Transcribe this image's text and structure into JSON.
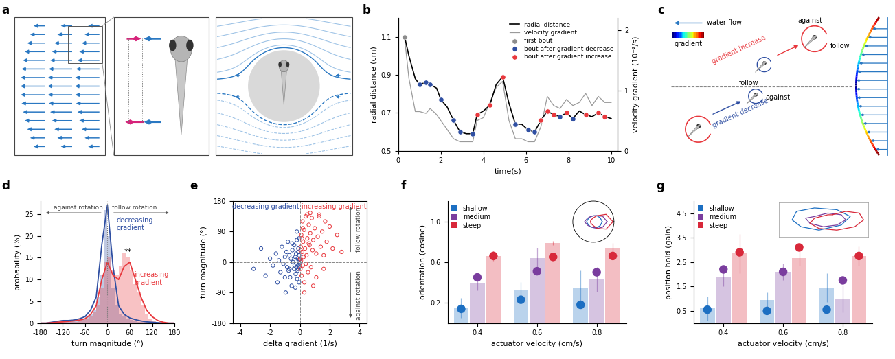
{
  "panel_labels": [
    "a",
    "b",
    "c",
    "d",
    "e",
    "f",
    "g"
  ],
  "diagram_c": {
    "water_flow": "water flow",
    "gradient": "gradient",
    "upper": {
      "arrow": "gradient increase",
      "against": "against",
      "follow": "follow"
    },
    "lower": {
      "arrow": "gradient decrease",
      "follow": "follow",
      "against": "against"
    }
  },
  "chart_data": [
    {
      "panel": "b",
      "type": "line",
      "xlabel": "time(s)",
      "ylabel": "radial distance (cm)",
      "y2label": "velocity gradient (10⁻²/s)",
      "xlim": [
        0,
        10.3
      ],
      "xticks": [
        0,
        2,
        4,
        6,
        8,
        10
      ],
      "ylim": [
        0.5,
        1.2
      ],
      "yticks": [
        0.5,
        0.7,
        0.9,
        1.1
      ],
      "y2lim": [
        0,
        2.2
      ],
      "y2ticks": [
        0,
        1,
        2
      ],
      "legend": "upper right",
      "series": [
        {
          "name": "radial distance",
          "type": "line",
          "color": "#000000",
          "x": [
            0.3,
            0.5,
            0.8,
            1.0,
            1.3,
            1.5,
            1.8,
            2.0,
            2.3,
            2.6,
            2.9,
            3.2,
            3.5,
            3.7,
            4.0,
            4.3,
            4.6,
            4.9,
            5.2,
            5.5,
            5.8,
            6.1,
            6.4,
            6.7,
            7.0,
            7.3,
            7.6,
            7.9,
            8.2,
            8.5,
            8.8,
            9.1,
            9.4,
            9.7,
            10.0
          ],
          "values": [
            1.1,
            1.0,
            0.88,
            0.85,
            0.86,
            0.85,
            0.83,
            0.77,
            0.73,
            0.66,
            0.6,
            0.59,
            0.59,
            0.69,
            0.71,
            0.74,
            0.85,
            0.89,
            0.75,
            0.64,
            0.64,
            0.61,
            0.6,
            0.66,
            0.71,
            0.69,
            0.68,
            0.7,
            0.67,
            0.71,
            0.69,
            0.68,
            0.7,
            0.68,
            0.67
          ]
        },
        {
          "name": "velocity gradient",
          "type": "line",
          "color": "#9a9a9a",
          "axis": "y2",
          "x": [
            0.3,
            0.5,
            0.8,
            1.0,
            1.3,
            1.5,
            1.8,
            2.0,
            2.3,
            2.6,
            2.9,
            3.2,
            3.5,
            3.7,
            4.0,
            4.3,
            4.6,
            4.9,
            5.2,
            5.5,
            5.8,
            6.1,
            6.4,
            6.7,
            7.0,
            7.3,
            7.6,
            7.9,
            8.2,
            8.5,
            8.8,
            9.1,
            9.4,
            9.7,
            10.0
          ],
          "values": [
            1.85,
            1.2,
            0.65,
            0.65,
            0.62,
            0.7,
            0.6,
            0.5,
            0.35,
            0.2,
            0.15,
            0.15,
            0.15,
            0.5,
            0.55,
            0.8,
            1.05,
            1.15,
            0.5,
            0.2,
            0.2,
            0.15,
            0.15,
            0.4,
            0.9,
            0.75,
            0.7,
            0.85,
            0.75,
            0.8,
            0.95,
            0.75,
            0.9,
            0.8,
            0.8
          ]
        },
        {
          "name": "first bout",
          "type": "scatter",
          "color": "#8c8c8c",
          "marker": "o",
          "x": [
            0.3
          ],
          "values": [
            1.1
          ]
        },
        {
          "name": "bout after gradient decrease",
          "type": "scatter",
          "color": "#2f4fa2",
          "marker": "o",
          "x": [
            1.0,
            1.3,
            1.5,
            2.0,
            2.6,
            2.9,
            3.5,
            5.5,
            6.1,
            6.4,
            7.6,
            8.2
          ],
          "values": [
            0.85,
            0.86,
            0.85,
            0.77,
            0.66,
            0.6,
            0.59,
            0.64,
            0.61,
            0.6,
            0.68,
            0.67
          ]
        },
        {
          "name": "bout after gradient increase",
          "type": "scatter",
          "color": "#e8383d",
          "marker": "o",
          "x": [
            3.7,
            4.3,
            4.9,
            6.7,
            7.0,
            7.3,
            7.9,
            8.8,
            9.4,
            9.7
          ],
          "values": [
            0.69,
            0.74,
            0.89,
            0.66,
            0.71,
            0.69,
            0.7,
            0.69,
            0.7,
            0.68
          ]
        }
      ]
    },
    {
      "panel": "d",
      "type": "histogram",
      "xlabel": "turn magnitude (°)",
      "ylabel": "probability (%)",
      "xlim": [
        -180,
        180
      ],
      "xticks": [
        -180,
        -120,
        -60,
        0,
        60,
        120,
        180
      ],
      "ylim": [
        0,
        28
      ],
      "yticks": [
        0,
        5,
        10,
        15,
        20,
        25
      ],
      "bins": [
        -180,
        -170,
        -160,
        -150,
        -140,
        -130,
        -120,
        -110,
        -100,
        -90,
        -80,
        -70,
        -60,
        -50,
        -40,
        -30,
        -20,
        -10,
        0,
        10,
        20,
        30,
        40,
        50,
        60,
        70,
        80,
        90,
        100,
        110,
        120,
        130,
        140,
        150,
        160,
        170,
        180
      ],
      "annotations": {
        "left": "against rotation",
        "right": "follow rotation",
        "significance": "**"
      },
      "series": [
        {
          "name": "decreasing\ngradient",
          "color": "#2f4fa2",
          "counts": [
            0,
            0,
            0,
            0,
            0.3,
            0.3,
            0.5,
            0.3,
            0.5,
            0.5,
            0.8,
            1,
            1.5,
            2,
            3,
            6,
            11,
            26,
            20,
            8,
            4,
            2,
            1.5,
            1,
            0.8,
            0.5,
            0.3,
            0.3,
            0.2,
            0.2,
            0,
            0,
            0,
            0,
            0,
            0
          ],
          "density_x": [
            -180,
            -165,
            -150,
            -135,
            -120,
            -105,
            -90,
            -75,
            -60,
            -45,
            -30,
            -15,
            0,
            15,
            30,
            45,
            60,
            75,
            90,
            105,
            120,
            135,
            150,
            165,
            180
          ],
          "density": [
            0,
            0,
            0.2,
            0.4,
            0.6,
            0.6,
            0.7,
            1,
            1.5,
            3,
            6,
            18,
            27,
            13,
            4,
            2,
            1.2,
            0.8,
            0.5,
            0.3,
            0.2,
            0.1,
            0,
            0,
            0
          ]
        },
        {
          "name": "increasing\ngradient",
          "color": "#e8383d",
          "counts": [
            0,
            0,
            0,
            0,
            0.2,
            0.2,
            0.3,
            0.2,
            0.3,
            0.3,
            0.5,
            0.8,
            1,
            1.5,
            2.5,
            4,
            8,
            14,
            15,
            12,
            11,
            13,
            16,
            15,
            12,
            9,
            7,
            4,
            2,
            1,
            0.5,
            0.3,
            0.2,
            0,
            0,
            0
          ],
          "density_x": [
            -180,
            -165,
            -150,
            -135,
            -120,
            -105,
            -90,
            -75,
            -60,
            -45,
            -30,
            -15,
            0,
            15,
            30,
            45,
            60,
            75,
            90,
            105,
            120,
            135,
            150,
            165,
            180
          ],
          "density": [
            0,
            0,
            0.1,
            0.2,
            0.3,
            0.4,
            0.5,
            0.7,
            1,
            2,
            4,
            10,
            14,
            11,
            10,
            13,
            14,
            10,
            6,
            3,
            1.5,
            0.6,
            0.2,
            0,
            0
          ]
        }
      ]
    },
    {
      "panel": "e",
      "type": "scatter",
      "xlabel": "delta gradient (1/s)",
      "ylabel": "turn magnitude (°)",
      "xlim": [
        -4.5,
        4.5
      ],
      "xticks": [
        -4,
        -2,
        0,
        2,
        4
      ],
      "ylim": [
        -180,
        180
      ],
      "yticks": [
        -180,
        -90,
        0,
        90,
        180
      ],
      "marker": "o",
      "annotations": {
        "up": "follow rotation",
        "down": "against rotation"
      },
      "series": [
        {
          "name": "decreasing gradient",
          "color": "#2f4fa2",
          "x": [
            -3.1,
            -2.6,
            -2.3,
            -2.0,
            -1.8,
            -1.6,
            -1.5,
            -1.4,
            -1.3,
            -1.2,
            -1.1,
            -1.0,
            -0.95,
            -0.9,
            -0.85,
            -0.8,
            -0.75,
            -0.7,
            -0.65,
            -0.6,
            -0.55,
            -0.5,
            -0.45,
            -0.4,
            -0.38,
            -0.35,
            -0.3,
            -0.28,
            -0.25,
            -0.22,
            -0.2,
            -0.18,
            -0.15,
            -0.12,
            -0.1,
            -0.08,
            -0.06,
            -0.05,
            -0.04,
            -0.03,
            -0.02,
            -0.01,
            -0.3,
            -0.5,
            -0.7,
            -1.0,
            -0.2,
            -0.15,
            -0.1,
            -0.05
          ],
          "values": [
            -20,
            40,
            -40,
            10,
            -10,
            25,
            -60,
            5,
            -30,
            45,
            -5,
            15,
            -90,
            30,
            -15,
            60,
            -25,
            20,
            -45,
            10,
            -70,
            35,
            0,
            -20,
            50,
            -10,
            15,
            -35,
            25,
            -5,
            65,
            -50,
            10,
            -20,
            30,
            -8,
            5,
            -60,
            20,
            -15,
            8,
            -3,
            -75,
            55,
            -20,
            -45,
            90,
            -25,
            40,
            70
          ]
        },
        {
          "name": "increasing gradient",
          "color": "#e8383d",
          "x": [
            0.02,
            0.04,
            0.06,
            0.08,
            0.1,
            0.12,
            0.15,
            0.18,
            0.2,
            0.22,
            0.25,
            0.28,
            0.3,
            0.35,
            0.4,
            0.45,
            0.5,
            0.55,
            0.6,
            0.65,
            0.7,
            0.75,
            0.8,
            0.85,
            0.9,
            1.0,
            1.1,
            1.2,
            1.3,
            1.4,
            1.5,
            1.6,
            1.7,
            1.8,
            2.0,
            2.2,
            2.5,
            2.8,
            0.3,
            0.5,
            0.7,
            0.9,
            1.1,
            0.2,
            0.4,
            0.6,
            1.3,
            1.6,
            0.15,
            0.05
          ],
          "values": [
            10,
            -20,
            45,
            5,
            80,
            -40,
            30,
            120,
            -10,
            60,
            15,
            95,
            -60,
            40,
            135,
            20,
            70,
            -30,
            110,
            50,
            85,
            -15,
            130,
            35,
            65,
            100,
            -45,
            75,
            140,
            45,
            90,
            20,
            120,
            60,
            105,
            40,
            80,
            30,
            -90,
            140,
            145,
            -70,
            25,
            100,
            -5,
            55,
            135,
            -20,
            70,
            35
          ]
        }
      ]
    },
    {
      "panel": "f",
      "type": "bar",
      "xlabel": "actuator velocity (cm/s)",
      "ylabel": "orientation (cosine)",
      "categories": [
        "0.4",
        "0.6",
        "0.8"
      ],
      "ylim": [
        0,
        1.2
      ],
      "yticks": [
        0.2,
        0.6,
        {
          "value": 1,
          "label": "1.0"
        }
      ],
      "legend": "upper left",
      "series": [
        {
          "name": "shallow",
          "color": "#1c6fc2",
          "values": [
            0.15,
            0.33,
            0.34
          ],
          "errors": [
            0.1,
            0.07,
            0.18
          ],
          "points": [
            0.14,
            0.23,
            0.18
          ]
        },
        {
          "name": "medium",
          "color": "#7a3d9e",
          "values": [
            0.39,
            0.64,
            0.43
          ],
          "errors": [
            0.07,
            0.1,
            0.12
          ],
          "points": [
            0.45,
            0.51,
            0.5
          ]
        },
        {
          "name": "steep",
          "color": "#d8283a",
          "values": [
            0.66,
            0.79,
            0.74
          ],
          "errors": [
            0.05,
            0.02,
            0.05
          ],
          "points": [
            0.66,
            0.65,
            0.66
          ]
        }
      ],
      "inset": {
        "type": "polar",
        "tick_labels": false,
        "ylim": [
          0,
          1.05
        ],
        "angles": [
          0,
          30,
          60,
          90,
          120,
          150,
          180,
          210,
          240,
          270,
          300,
          330
        ],
        "series": [
          {
            "color": "#1c6fc2",
            "values": [
              0.45,
              0.4,
              0.35,
              0.3,
              0.3,
              0.3,
              0.35,
              0.3,
              0.3,
              0.3,
              0.35,
              0.4
            ]
          },
          {
            "color": "#7a3d9e",
            "values": [
              0.7,
              0.55,
              0.35,
              0.3,
              0.3,
              0.35,
              0.45,
              0.35,
              0.3,
              0.3,
              0.4,
              0.55
            ]
          },
          {
            "color": "#d8283a",
            "values": [
              1.0,
              0.75,
              0.35,
              0.2,
              0.15,
              0.15,
              0.15,
              0.15,
              0.15,
              0.2,
              0.4,
              0.75
            ]
          }
        ]
      }
    },
    {
      "panel": "g",
      "type": "bar",
      "xlabel": "actuator velocity (cm/s)",
      "ylabel": "position hold (gain)",
      "categories": [
        "0.4",
        "0.6",
        "0.8"
      ],
      "ylim": [
        0,
        5
      ],
      "yticks": [
        0.5,
        1.5,
        2.5,
        3.5,
        4.5
      ],
      "legend": "upper left",
      "series": [
        {
          "name": "shallow",
          "color": "#1c6fc2",
          "values": [
            0.6,
            0.95,
            1.45
          ],
          "errors": [
            0.5,
            0.3,
            0.6
          ],
          "points": [
            0.55,
            0.5,
            0.55
          ]
        },
        {
          "name": "medium",
          "color": "#7a3d9e",
          "values": [
            1.9,
            2.1,
            1.0
          ],
          "errors": [
            0.4,
            0.35,
            0.55
          ],
          "points": [
            2.2,
            2.1,
            1.75
          ]
        },
        {
          "name": "steep",
          "color": "#d8283a",
          "values": [
            2.85,
            2.65,
            2.75
          ],
          "errors": [
            0.8,
            0.3,
            0.4
          ],
          "points": [
            2.9,
            3.1,
            2.75
          ]
        }
      ],
      "inset": {
        "type": "line",
        "tick_labels": false,
        "xlim": [
          -1,
          1
        ],
        "ylim": [
          -1,
          1
        ],
        "series": [
          {
            "color": "#1c6fc2",
            "x": [
              -0.6,
              -0.2,
              0.3,
              0.6,
              0.4,
              -0.1,
              -0.5,
              -0.7,
              -0.6
            ],
            "values": [
              0.5,
              0.7,
              0.6,
              0.2,
              -0.3,
              -0.6,
              -0.4,
              0.0,
              0.5
            ]
          },
          {
            "color": "#7a3d9e",
            "x": [
              -0.2,
              0.1,
              0.4,
              0.5,
              0.3,
              0.0,
              -0.3,
              -0.4,
              -0.2
            ],
            "values": [
              0.2,
              0.4,
              0.3,
              0.0,
              -0.3,
              -0.4,
              -0.2,
              0.1,
              0.2
            ]
          },
          {
            "color": "#d8283a",
            "x": [
              0.2,
              0.5,
              0.8,
              0.9,
              0.7,
              0.3,
              -0.1,
              -0.3,
              -0.2,
              0.1,
              0.2
            ],
            "values": [
              0.3,
              0.5,
              0.4,
              0.0,
              -0.4,
              -0.6,
              -0.5,
              -0.2,
              0.1,
              0.3,
              0.3
            ]
          }
        ]
      }
    }
  ]
}
